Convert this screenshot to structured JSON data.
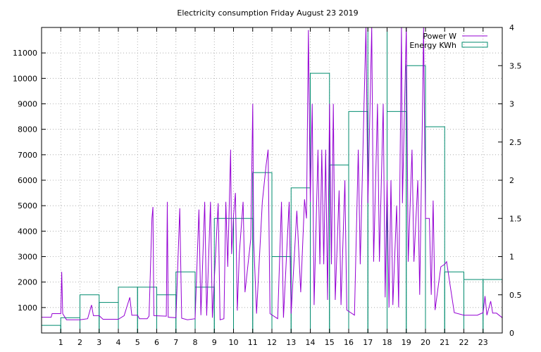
{
  "chart_data": {
    "type": "line",
    "title": "Electricity consumption Friday August 23 2019",
    "grid": true,
    "legend_position": "top-right",
    "x": {
      "label": "",
      "range": [
        0,
        24
      ],
      "ticks": [
        1,
        2,
        3,
        4,
        5,
        6,
        7,
        8,
        9,
        10,
        11,
        12,
        13,
        14,
        15,
        16,
        17,
        18,
        19,
        20,
        21,
        22,
        23
      ]
    },
    "y_left": {
      "label": "",
      "range": [
        0,
        12000
      ],
      "ticks": [
        1000,
        2000,
        3000,
        4000,
        5000,
        6000,
        7000,
        8000,
        9000,
        10000,
        11000
      ]
    },
    "y_right": {
      "label": "",
      "range": [
        0,
        4
      ],
      "ticks": [
        0,
        0.5,
        1,
        1.5,
        2,
        2.5,
        3,
        3.5,
        4
      ],
      "tick_labels": [
        "0",
        "0.5",
        "1",
        "1.5",
        "2",
        "2.5",
        "3",
        "3.5",
        "4"
      ]
    },
    "series": [
      {
        "name": "Power W",
        "axis": "left",
        "color": "#9400d3",
        "style": "line",
        "points": [
          [
            0.0,
            620
          ],
          [
            0.5,
            620
          ],
          [
            0.55,
            760
          ],
          [
            1.0,
            760
          ],
          [
            1.05,
            2400
          ],
          [
            1.1,
            760
          ],
          [
            1.3,
            520
          ],
          [
            2.0,
            520
          ],
          [
            2.4,
            560
          ],
          [
            2.6,
            1100
          ],
          [
            2.7,
            680
          ],
          [
            3.0,
            680
          ],
          [
            3.2,
            540
          ],
          [
            4.0,
            540
          ],
          [
            4.3,
            680
          ],
          [
            4.6,
            1400
          ],
          [
            4.7,
            700
          ],
          [
            5.0,
            700
          ],
          [
            5.1,
            560
          ],
          [
            5.5,
            560
          ],
          [
            5.6,
            660
          ],
          [
            5.75,
            4500
          ],
          [
            5.8,
            4950
          ],
          [
            5.85,
            680
          ],
          [
            6.5,
            660
          ],
          [
            6.55,
            5150
          ],
          [
            6.6,
            620
          ],
          [
            7.0,
            600
          ],
          [
            7.2,
            4900
          ],
          [
            7.3,
            580
          ],
          [
            7.6,
            520
          ],
          [
            8.0,
            560
          ],
          [
            8.2,
            4850
          ],
          [
            8.3,
            700
          ],
          [
            8.5,
            5150
          ],
          [
            8.6,
            680
          ],
          [
            8.8,
            5150
          ],
          [
            8.9,
            600
          ],
          [
            9.2,
            5100
          ],
          [
            9.3,
            520
          ],
          [
            9.5,
            560
          ],
          [
            9.6,
            5150
          ],
          [
            9.7,
            2600
          ],
          [
            9.85,
            7200
          ],
          [
            9.9,
            3100
          ],
          [
            10.0,
            4600
          ],
          [
            10.1,
            5500
          ],
          [
            10.2,
            880
          ],
          [
            10.3,
            3100
          ],
          [
            10.5,
            5150
          ],
          [
            10.6,
            1600
          ],
          [
            10.9,
            3700
          ],
          [
            11.0,
            9000
          ],
          [
            11.05,
            3650
          ],
          [
            11.2,
            760
          ],
          [
            11.5,
            5150
          ],
          [
            11.7,
            6600
          ],
          [
            11.8,
            7200
          ],
          [
            11.9,
            760
          ],
          [
            12.3,
            560
          ],
          [
            12.5,
            5150
          ],
          [
            12.6,
            600
          ],
          [
            12.9,
            5150
          ],
          [
            13.0,
            760
          ],
          [
            13.3,
            4800
          ],
          [
            13.5,
            1600
          ],
          [
            13.7,
            5250
          ],
          [
            13.8,
            4500
          ],
          [
            13.9,
            11900
          ],
          [
            14.0,
            5150
          ],
          [
            14.1,
            9000
          ],
          [
            14.2,
            1100
          ],
          [
            14.4,
            7200
          ],
          [
            14.5,
            2700
          ],
          [
            14.6,
            7200
          ],
          [
            14.7,
            2700
          ],
          [
            14.8,
            7200
          ],
          [
            14.9,
            1300
          ],
          [
            15.0,
            9000
          ],
          [
            15.1,
            2700
          ],
          [
            15.2,
            9000
          ],
          [
            15.3,
            1300
          ],
          [
            15.5,
            5600
          ],
          [
            15.6,
            1100
          ],
          [
            15.8,
            6000
          ],
          [
            15.9,
            900
          ],
          [
            16.3,
            700
          ],
          [
            16.5,
            7200
          ],
          [
            16.6,
            2700
          ],
          [
            16.8,
            9000
          ],
          [
            16.9,
            12000
          ],
          [
            17.0,
            5100
          ],
          [
            17.2,
            12000
          ],
          [
            17.3,
            2800
          ],
          [
            17.5,
            9000
          ],
          [
            17.6,
            2800
          ],
          [
            17.8,
            9000
          ],
          [
            17.9,
            1400
          ],
          [
            18.0,
            6000
          ],
          [
            18.1,
            1000
          ],
          [
            18.2,
            6000
          ],
          [
            18.3,
            1100
          ],
          [
            18.5,
            5000
          ],
          [
            18.6,
            1000
          ],
          [
            18.75,
            12000
          ],
          [
            18.8,
            5100
          ],
          [
            19.0,
            12000
          ],
          [
            19.1,
            2800
          ],
          [
            19.3,
            7200
          ],
          [
            19.4,
            2800
          ],
          [
            19.6,
            6000
          ],
          [
            19.7,
            1500
          ],
          [
            19.85,
            9000
          ],
          [
            19.9,
            12000
          ],
          [
            20.0,
            4500
          ],
          [
            20.2,
            4500
          ],
          [
            20.3,
            1500
          ],
          [
            20.4,
            5200
          ],
          [
            20.5,
            900
          ],
          [
            20.8,
            2600
          ],
          [
            21.0,
            2700
          ],
          [
            21.1,
            2800
          ],
          [
            21.3,
            1800
          ],
          [
            21.5,
            800
          ],
          [
            22.0,
            700
          ],
          [
            22.5,
            700
          ],
          [
            22.7,
            700
          ],
          [
            23.0,
            800
          ],
          [
            23.1,
            1450
          ],
          [
            23.2,
            700
          ],
          [
            23.4,
            1250
          ],
          [
            23.5,
            780
          ],
          [
            23.7,
            780
          ],
          [
            24.0,
            600
          ]
        ]
      },
      {
        "name": "Energy KWh",
        "axis": "right",
        "color": "#008b6e",
        "style": "histeps",
        "values": [
          0.1,
          0.2,
          0.5,
          0.4,
          0.6,
          0.6,
          0.5,
          0.8,
          0.6,
          1.5,
          1.5,
          2.1,
          1.0,
          1.9,
          3.4,
          2.2,
          2.9,
          4.0,
          2.9,
          3.5,
          2.7,
          0.8,
          0.7,
          0.7
        ]
      }
    ]
  }
}
